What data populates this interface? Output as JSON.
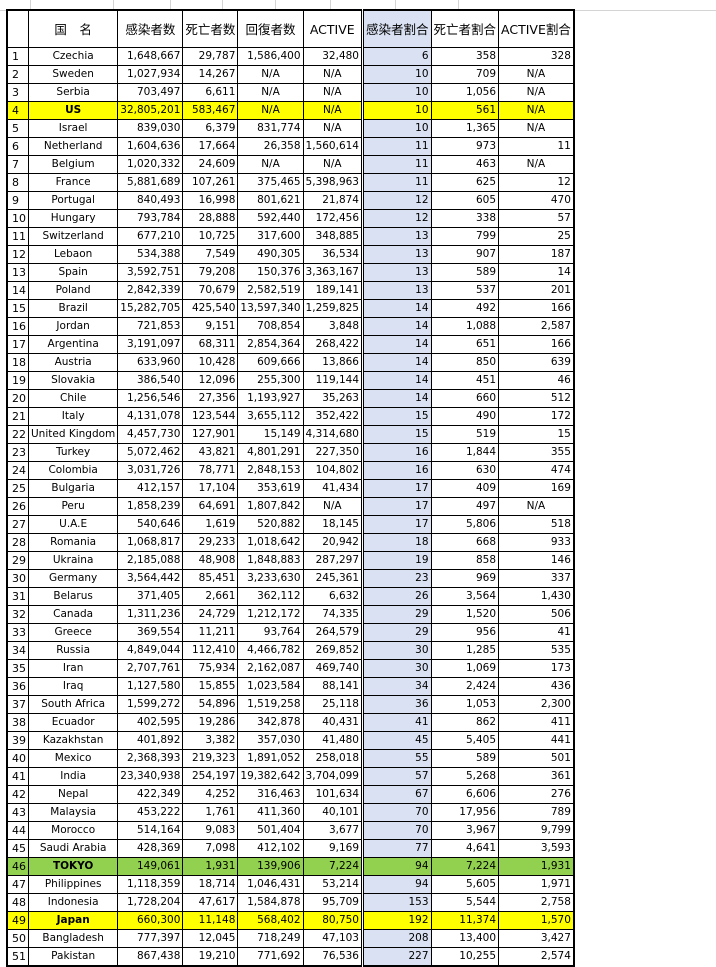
{
  "colors": {
    "highlight_yellow": "#ffff00",
    "highlight_green": "#92d050",
    "ratio_column": "#d9e1f2"
  },
  "headers": [
    "",
    "国　名",
    "感染者数",
    "死亡者数",
    "回復者数",
    "ACTIVE",
    "感染者割合",
    "死亡者割合",
    "ACTIVE割合"
  ],
  "rows": [
    [
      "1",
      "Czechia",
      "1,648,667",
      "29,787",
      "1,586,400",
      "32,480",
      "6",
      "358",
      "328",
      ""
    ],
    [
      "2",
      "Sweden",
      "1,027,934",
      "14,267",
      "N/A",
      "N/A",
      "10",
      "709",
      "N/A",
      ""
    ],
    [
      "3",
      "Serbia",
      "703,497",
      "6,611",
      "N/A",
      "N/A",
      "10",
      "1,056",
      "N/A",
      ""
    ],
    [
      "4",
      "US",
      "32,805,201",
      "583,467",
      "N/A",
      "N/A",
      "10",
      "561",
      "N/A",
      "yellow"
    ],
    [
      "5",
      "Israel",
      "839,030",
      "6,379",
      "831,774",
      "N/A",
      "10",
      "1,365",
      "N/A",
      ""
    ],
    [
      "6",
      "Netherland",
      "1,604,636",
      "17,664",
      "26,358",
      "1,560,614",
      "11",
      "973",
      "11",
      ""
    ],
    [
      "7",
      "Belgium",
      "1,020,332",
      "24,609",
      "N/A",
      "N/A",
      "11",
      "463",
      "N/A",
      ""
    ],
    [
      "8",
      "France",
      "5,881,689",
      "107,261",
      "375,465",
      "5,398,963",
      "11",
      "625",
      "12",
      ""
    ],
    [
      "9",
      "Portugal",
      "840,493",
      "16,998",
      "801,621",
      "21,874",
      "12",
      "605",
      "470",
      ""
    ],
    [
      "10",
      "Hungary",
      "793,784",
      "28,888",
      "592,440",
      "172,456",
      "12",
      "338",
      "57",
      ""
    ],
    [
      "11",
      "Switzerland",
      "677,210",
      "10,725",
      "317,600",
      "348,885",
      "13",
      "799",
      "25",
      ""
    ],
    [
      "12",
      "Lebaon",
      "534,388",
      "7,549",
      "490,305",
      "36,534",
      "13",
      "907",
      "187",
      ""
    ],
    [
      "13",
      "Spain",
      "3,592,751",
      "79,208",
      "150,376",
      "3,363,167",
      "13",
      "589",
      "14",
      ""
    ],
    [
      "14",
      "Poland",
      "2,842,339",
      "70,679",
      "2,582,519",
      "189,141",
      "13",
      "537",
      "201",
      ""
    ],
    [
      "15",
      "Brazil",
      "15,282,705",
      "425,540",
      "13,597,340",
      "1,259,825",
      "14",
      "492",
      "166",
      ""
    ],
    [
      "16",
      "Jordan",
      "721,853",
      "9,151",
      "708,854",
      "3,848",
      "14",
      "1,088",
      "2,587",
      ""
    ],
    [
      "17",
      "Argentina",
      "3,191,097",
      "68,311",
      "2,854,364",
      "268,422",
      "14",
      "651",
      "166",
      ""
    ],
    [
      "18",
      "Austria",
      "633,960",
      "10,428",
      "609,666",
      "13,866",
      "14",
      "850",
      "639",
      ""
    ],
    [
      "19",
      "Slovakia",
      "386,540",
      "12,096",
      "255,300",
      "119,144",
      "14",
      "451",
      "46",
      ""
    ],
    [
      "20",
      "Chile",
      "1,256,546",
      "27,356",
      "1,193,927",
      "35,263",
      "14",
      "660",
      "512",
      ""
    ],
    [
      "21",
      "Italy",
      "4,131,078",
      "123,544",
      "3,655,112",
      "352,422",
      "15",
      "490",
      "172",
      ""
    ],
    [
      "22",
      "United Kingdom",
      "4,457,730",
      "127,901",
      "15,149",
      "4,314,680",
      "15",
      "519",
      "15",
      ""
    ],
    [
      "23",
      "Turkey",
      "5,072,462",
      "43,821",
      "4,801,291",
      "227,350",
      "16",
      "1,844",
      "355",
      ""
    ],
    [
      "24",
      "Colombia",
      "3,031,726",
      "78,771",
      "2,848,153",
      "104,802",
      "16",
      "630",
      "474",
      ""
    ],
    [
      "25",
      "Bulgaria",
      "412,157",
      "17,104",
      "353,619",
      "41,434",
      "17",
      "409",
      "169",
      ""
    ],
    [
      "26",
      "Peru",
      "1,858,239",
      "64,691",
      "1,807,842",
      "N/A",
      "17",
      "497",
      "N/A",
      ""
    ],
    [
      "27",
      "U.A.E",
      "540,646",
      "1,619",
      "520,882",
      "18,145",
      "17",
      "5,806",
      "518",
      ""
    ],
    [
      "28",
      "Romania",
      "1,068,817",
      "29,233",
      "1,018,642",
      "20,942",
      "18",
      "668",
      "933",
      ""
    ],
    [
      "29",
      "Ukraina",
      "2,185,088",
      "48,908",
      "1,848,883",
      "287,297",
      "19",
      "858",
      "146",
      ""
    ],
    [
      "30",
      "Germany",
      "3,564,442",
      "85,451",
      "3,233,630",
      "245,361",
      "23",
      "969",
      "337",
      ""
    ],
    [
      "31",
      "Belarus",
      "371,405",
      "2,661",
      "362,112",
      "6,632",
      "26",
      "3,564",
      "1,430",
      ""
    ],
    [
      "32",
      "Canada",
      "1,311,236",
      "24,729",
      "1,212,172",
      "74,335",
      "29",
      "1,520",
      "506",
      ""
    ],
    [
      "33",
      "Greece",
      "369,554",
      "11,211",
      "93,764",
      "264,579",
      "29",
      "956",
      "41",
      ""
    ],
    [
      "34",
      "Russia",
      "4,849,044",
      "112,410",
      "4,466,782",
      "269,852",
      "30",
      "1,285",
      "535",
      ""
    ],
    [
      "35",
      "Iran",
      "2,707,761",
      "75,934",
      "2,162,087",
      "469,740",
      "30",
      "1,069",
      "173",
      ""
    ],
    [
      "36",
      "Iraq",
      "1,127,580",
      "15,855",
      "1,023,584",
      "88,141",
      "34",
      "2,424",
      "436",
      ""
    ],
    [
      "37",
      "South Africa",
      "1,599,272",
      "54,896",
      "1,519,258",
      "25,118",
      "36",
      "1,053",
      "2,300",
      ""
    ],
    [
      "38",
      "Ecuador",
      "402,595",
      "19,286",
      "342,878",
      "40,431",
      "41",
      "862",
      "411",
      ""
    ],
    [
      "39",
      "Kazakhstan",
      "401,892",
      "3,382",
      "357,030",
      "41,480",
      "45",
      "5,405",
      "441",
      ""
    ],
    [
      "40",
      "Mexico",
      "2,368,393",
      "219,323",
      "1,891,052",
      "258,018",
      "55",
      "589",
      "501",
      ""
    ],
    [
      "41",
      "India",
      "23,340,938",
      "254,197",
      "19,382,642",
      "3,704,099",
      "57",
      "5,268",
      "361",
      ""
    ],
    [
      "42",
      "Nepal",
      "422,349",
      "4,252",
      "316,463",
      "101,634",
      "67",
      "6,606",
      "276",
      ""
    ],
    [
      "43",
      "Malaysia",
      "453,222",
      "1,761",
      "411,360",
      "40,101",
      "70",
      "17,956",
      "789",
      ""
    ],
    [
      "44",
      "Morocco",
      "514,164",
      "9,083",
      "501,404",
      "3,677",
      "70",
      "3,967",
      "9,799",
      ""
    ],
    [
      "45",
      "Saudi Arabia",
      "428,369",
      "7,098",
      "412,102",
      "9,169",
      "77",
      "4,641",
      "3,593",
      ""
    ],
    [
      "46",
      "TOKYO",
      "149,061",
      "1,931",
      "139,906",
      "7,224",
      "94",
      "7,224",
      "1,931",
      "green"
    ],
    [
      "47",
      "Philippines",
      "1,118,359",
      "18,714",
      "1,046,431",
      "53,214",
      "94",
      "5,605",
      "1,971",
      ""
    ],
    [
      "48",
      "Indonesia",
      "1,728,204",
      "47,617",
      "1,584,878",
      "95,709",
      "153",
      "5,544",
      "2,758",
      ""
    ],
    [
      "49",
      "Japan",
      "660,300",
      "11,148",
      "568,402",
      "80,750",
      "192",
      "11,374",
      "1,570",
      "yellow"
    ],
    [
      "50",
      "Bangladesh",
      "777,397",
      "12,045",
      "718,249",
      "47,103",
      "208",
      "13,400",
      "3,427",
      ""
    ],
    [
      "51",
      "Pakistan",
      "867,438",
      "19,210",
      "771,692",
      "76,536",
      "227",
      "10,255",
      "2,574",
      ""
    ]
  ]
}
